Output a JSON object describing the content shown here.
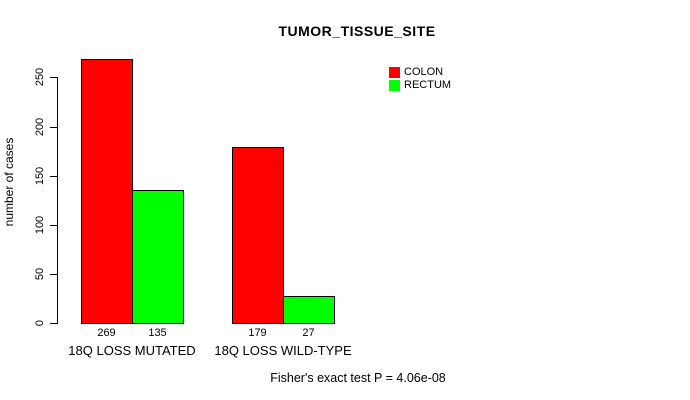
{
  "chart_data": {
    "type": "bar",
    "title": "TUMOR_TISSUE_SITE",
    "xlabel": "",
    "ylabel": "number of cases",
    "categories": [
      "18Q LOSS MUTATED",
      "18Q LOSS WILD-TYPE"
    ],
    "series": [
      {
        "name": "COLON",
        "color": "#FF0000",
        "values": [
          269,
          179
        ]
      },
      {
        "name": "RECTUM",
        "color": "#00FF00",
        "values": [
          135,
          27
        ]
      }
    ],
    "yticks": [
      0,
      50,
      100,
      150,
      200,
      250
    ],
    "ylim": [
      0,
      269
    ],
    "bar_values_shown": true,
    "grid": false,
    "legend_position": "topright",
    "annotation": "Fisher's exact test P = 4.06e-08"
  },
  "colors": {
    "axis": "#000000",
    "text": "#000000",
    "background": "#FFFFFF"
  }
}
